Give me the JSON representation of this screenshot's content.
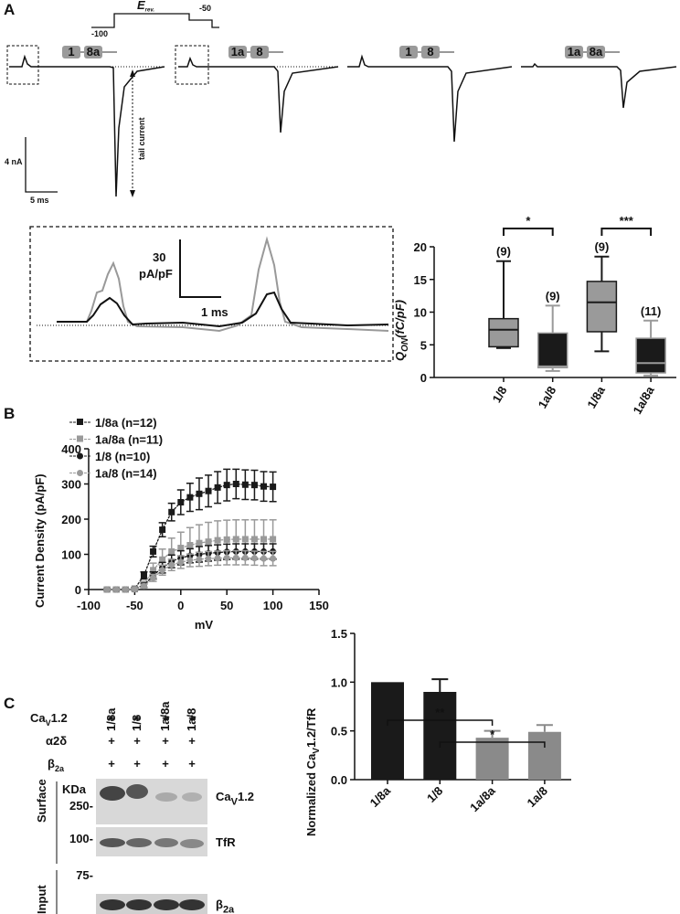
{
  "figure": {
    "panel_labels": [
      "A",
      "B",
      "C"
    ],
    "protocol": {
      "erev": {
        "main": "E",
        "sub": "rev."
      },
      "v_hold": "-100",
      "v_tail": "-50"
    },
    "constructs": [
      [
        "1",
        "8a"
      ],
      [
        "1a",
        "8"
      ],
      [
        "1",
        "8"
      ],
      [
        "1a",
        "8a"
      ]
    ],
    "scale": {
      "current": "4 nA",
      "time": "5 ms"
    },
    "tail_label": "tail current",
    "inset": {
      "density_value": "30",
      "density_unit": "pA/pF",
      "time": "1 ms"
    },
    "blot": {
      "lanes": [
        "1/8a",
        "1/8",
        "1a/8a",
        "1a/8"
      ],
      "rows": [
        {
          "label": {
            "main": "Ca",
            "sub": "V",
            "rest": "1.2"
          },
          "marks": [
            "+",
            "+",
            "+",
            "+"
          ]
        },
        {
          "label": {
            "main": "α2δ"
          },
          "marks": [
            "+",
            "+",
            "+",
            "+"
          ]
        },
        {
          "label": {
            "main": "β",
            "sub": "2a"
          },
          "marks": [
            "+",
            "+",
            "+",
            "+"
          ]
        }
      ],
      "kda": "KDa",
      "markers": [
        "250-",
        "100-",
        "75-"
      ],
      "sections": [
        "Surface",
        "Input"
      ],
      "bands": [
        {
          "main": "Ca",
          "sub": "V",
          "rest": "1.2"
        },
        {
          "main": "TfR"
        },
        {
          "main": "β",
          "sub": "2a"
        }
      ]
    }
  },
  "chart_data": [
    {
      "type": "box",
      "ylabel": {
        "main": "Q",
        "sub": "ON",
        "rest": "(fC/pF)"
      },
      "categories": [
        "1/8",
        "1a/8",
        "1/8a",
        "1a/8a"
      ],
      "boxes": [
        {
          "min": 4.5,
          "q1": 4.7,
          "median": 7.3,
          "q3": 9,
          "max": 17.8
        },
        {
          "min": 1,
          "q1": 1.5,
          "median": 1.7,
          "q3": 6.8,
          "max": 11
        },
        {
          "min": 4,
          "q1": 7,
          "median": 11.5,
          "q3": 14.7,
          "max": 18.5
        },
        {
          "min": 0.3,
          "q1": 0.7,
          "median": 2.2,
          "q3": 6,
          "max": 8.7
        }
      ],
      "colors": [
        "#9a9a9a",
        "#1a1a1a",
        "#9a9a9a",
        "#1a1a1a"
      ],
      "whisker_colors": [
        "#1a1a1a",
        "#9a9a9a",
        "#1a1a1a",
        "#9a9a9a"
      ],
      "n_labels": [
        "(9)",
        "(9)",
        "(9)",
        "(11)"
      ],
      "significance": [
        "*",
        "***"
      ],
      "ylim": [
        0,
        20
      ],
      "yticks": [
        0,
        5,
        10,
        15,
        20
      ]
    },
    {
      "type": "line",
      "ylabel": "Current Density (pA/pF)",
      "xlabel": "mV",
      "x": [
        -80,
        -70,
        -60,
        -50,
        -40,
        -30,
        -20,
        -10,
        0,
        10,
        20,
        30,
        40,
        50,
        60,
        70,
        80,
        90,
        100
      ],
      "series": [
        {
          "name": "1/8a (n=12)",
          "color": "#1a1a1a",
          "marker": "square",
          "values": [
            0,
            0,
            0,
            2,
            40,
            108,
            170,
            220,
            248,
            262,
            272,
            280,
            290,
            297,
            300,
            298,
            297,
            293,
            292
          ],
          "errors": [
            2,
            2,
            2,
            4,
            10,
            15,
            20,
            25,
            35,
            40,
            45,
            45,
            45,
            45,
            42,
            42,
            42,
            42,
            42
          ]
        },
        {
          "name": "1a/8a (n=11)",
          "color": "#9a9a9a",
          "marker": "square",
          "values": [
            0,
            0,
            0,
            1,
            15,
            55,
            85,
            108,
            118,
            126,
            132,
            136,
            140,
            142,
            143,
            143,
            143,
            143,
            143
          ],
          "errors": [
            1,
            1,
            1,
            3,
            8,
            20,
            30,
            38,
            45,
            50,
            52,
            55,
            55,
            55,
            55,
            55,
            55,
            55,
            55
          ]
        },
        {
          "name": "1/8 (n=10)",
          "color": "#1a1a1a",
          "marker": "circle",
          "values": [
            0,
            0,
            0,
            1,
            12,
            40,
            62,
            80,
            90,
            96,
            100,
            103,
            105,
            107,
            108,
            108,
            108,
            108,
            108
          ],
          "errors": [
            1,
            1,
            1,
            2,
            6,
            10,
            15,
            18,
            20,
            20,
            22,
            22,
            22,
            22,
            22,
            22,
            22,
            22,
            22
          ]
        },
        {
          "name": "1a/8 (n=14)",
          "color": "#9a9a9a",
          "marker": "circle",
          "values": [
            0,
            0,
            0,
            1,
            10,
            33,
            55,
            70,
            78,
            83,
            86,
            88,
            89,
            90,
            90,
            90,
            89,
            88,
            88
          ],
          "errors": [
            1,
            1,
            1,
            2,
            5,
            10,
            14,
            16,
            18,
            18,
            20,
            20,
            20,
            20,
            20,
            20,
            20,
            20,
            20
          ]
        }
      ],
      "xlim": [
        -100,
        150
      ],
      "xticks": [
        -100,
        -50,
        0,
        50,
        100,
        150
      ],
      "ylim": [
        0,
        400
      ],
      "yticks": [
        0,
        100,
        200,
        300,
        400
      ]
    },
    {
      "type": "bar",
      "ylabel": {
        "main": "Normalized Ca",
        "sub": "V",
        "rest": "1.2/TfR"
      },
      "categories": [
        "1/8a",
        "1/8",
        "1a/8a",
        "1a/8"
      ],
      "values": [
        1.0,
        0.9,
        0.43,
        0.49
      ],
      "errors": [
        null,
        0.13,
        0.07,
        0.07
      ],
      "colors": [
        "#1a1a1a",
        "#1a1a1a",
        "#8a8a8a",
        "#8a8a8a"
      ],
      "significance": [
        "**",
        "*"
      ],
      "ylim": [
        0,
        1.5
      ],
      "yticks": [
        {
          "value": 0,
          "label": "0.0"
        },
        0.5,
        {
          "value": 1,
          "label": "1.0"
        },
        {
          "value": 1.5,
          "label": "1.5"
        }
      ]
    }
  ]
}
